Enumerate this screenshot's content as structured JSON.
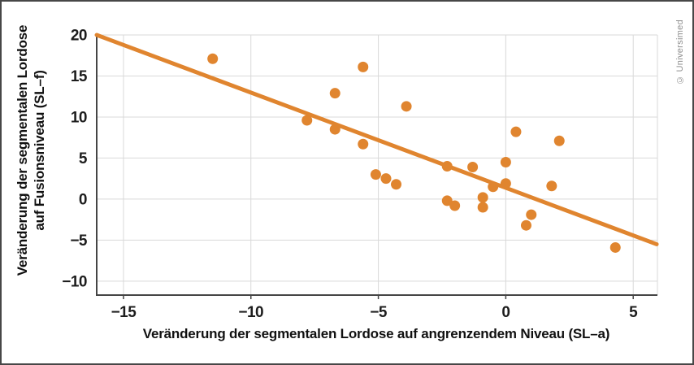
{
  "figure": {
    "copyright": "© Universimed"
  },
  "chart_data": {
    "type": "scatter",
    "title": "",
    "xlabel": "Veränderung der segmentalen Lordose auf angrenzendem Niveau (SL–a)",
    "ylabel_lines": [
      "Veränderung der segmentalen Lordose",
      "auf Fusionsniveau (SL–f)"
    ],
    "xlim": [
      -16.05,
      5.95
    ],
    "ylim": [
      -11.7,
      20
    ],
    "grid": true,
    "legend_position": "none",
    "x_ticks": [
      {
        "value": -15,
        "label": "−15"
      },
      {
        "value": -10,
        "label": "−10"
      },
      {
        "value": -5,
        "label": "−5"
      },
      {
        "value": 0,
        "label": "0"
      },
      {
        "value": 5,
        "label": "5"
      }
    ],
    "y_ticks": [
      {
        "value": -10,
        "label": "−10"
      },
      {
        "value": -5,
        "label": "−5"
      },
      {
        "value": 0,
        "label": "0"
      },
      {
        "value": 5,
        "label": "5"
      },
      {
        "value": 10,
        "label": "10"
      },
      {
        "value": 15,
        "label": "15"
      },
      {
        "value": 20,
        "label": "20"
      }
    ],
    "points": [
      [
        -11.5,
        17.1
      ],
      [
        -7.8,
        9.6
      ],
      [
        -6.7,
        12.9
      ],
      [
        -6.7,
        8.5
      ],
      [
        -5.6,
        16.1
      ],
      [
        -5.6,
        6.7
      ],
      [
        -5.1,
        3.0
      ],
      [
        -4.7,
        2.5
      ],
      [
        -4.3,
        1.8
      ],
      [
        -3.9,
        11.3
      ],
      [
        -2.3,
        4.0
      ],
      [
        -2.3,
        -0.2
      ],
      [
        -2.0,
        -0.8
      ],
      [
        -1.3,
        3.9
      ],
      [
        -0.9,
        0.2
      ],
      [
        -0.9,
        -1.0
      ],
      [
        -0.5,
        1.5
      ],
      [
        0.0,
        4.5
      ],
      [
        0.0,
        1.9
      ],
      [
        0.4,
        8.2
      ],
      [
        0.8,
        -3.2
      ],
      [
        1.0,
        -1.9
      ],
      [
        1.8,
        1.6
      ],
      [
        2.1,
        7.1
      ],
      [
        4.3,
        -5.9
      ]
    ],
    "trendline": {
      "x1": -16.05,
      "y1": 20.0,
      "x2": 5.92,
      "y2": -5.5
    },
    "colors": {
      "point": "#E0852F",
      "trendline": "#E0852F",
      "grid": "#D9D9D9",
      "axis": "#454545",
      "tick_text": "#1d1d1d",
      "title_text": "#111111",
      "copyright_text": "#8f8f8f"
    }
  }
}
